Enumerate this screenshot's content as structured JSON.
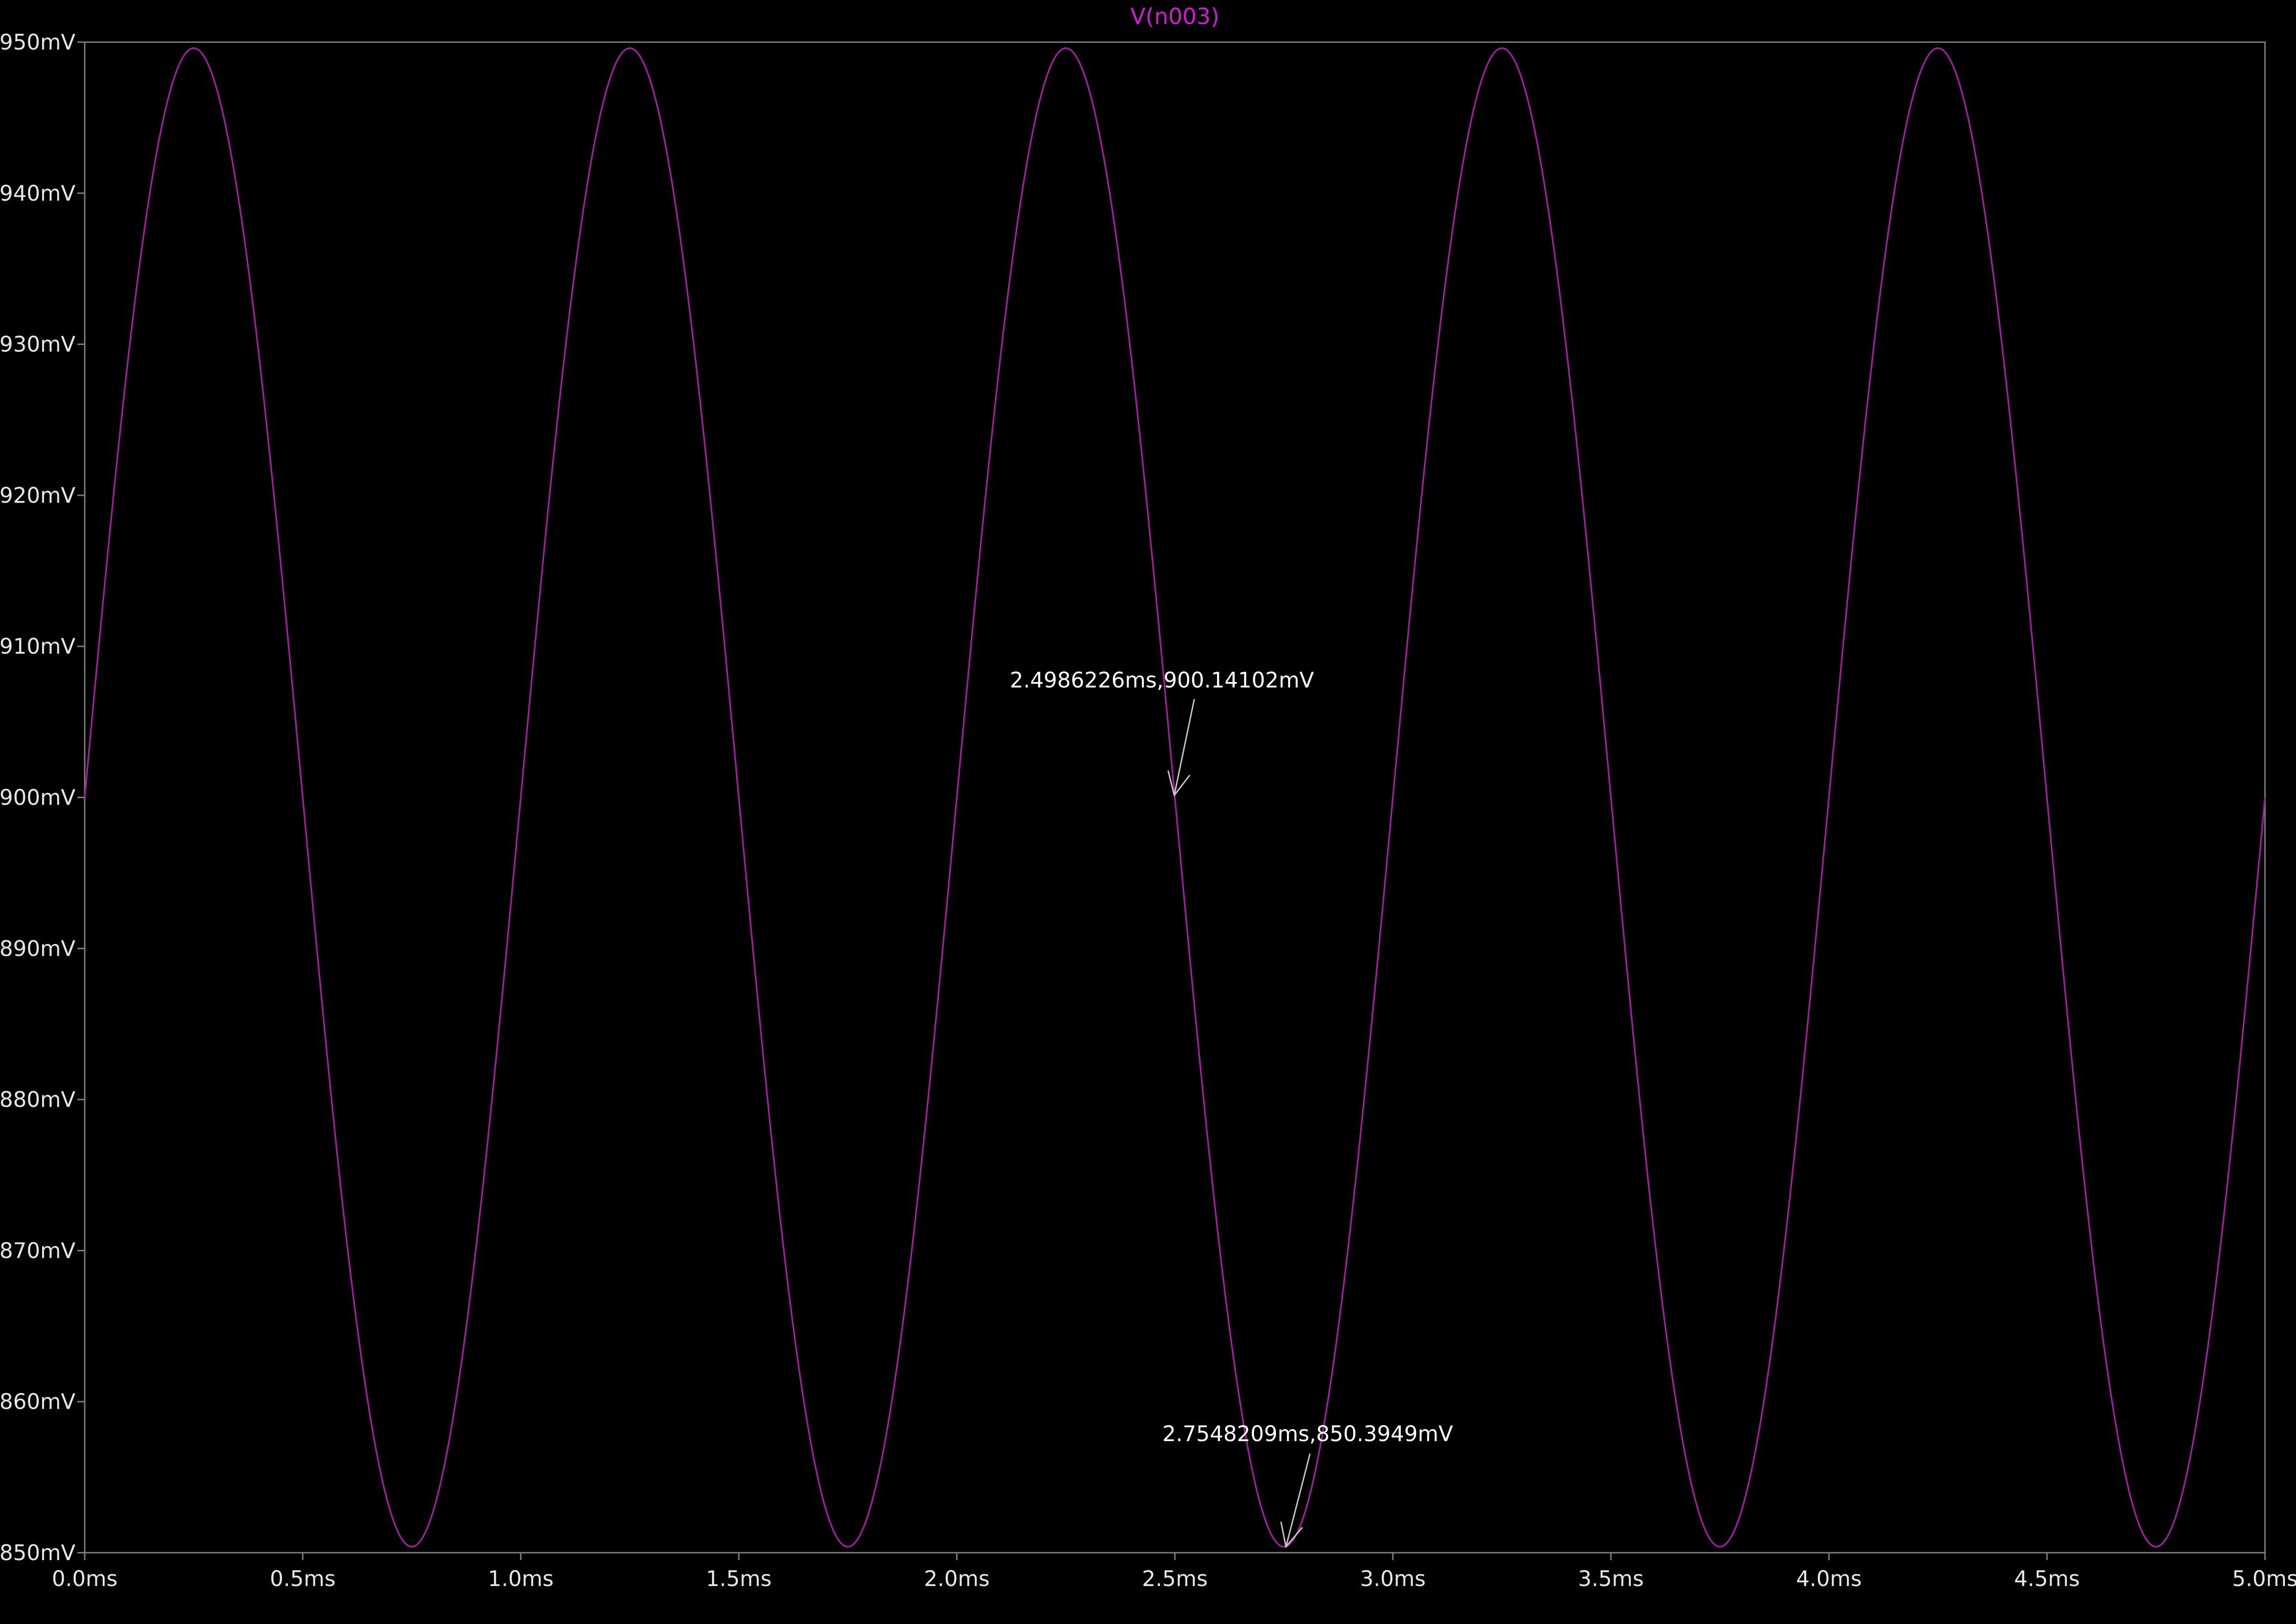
{
  "chart_data": {
    "type": "line",
    "title": "V(n003)",
    "title_color": "#d01cd0",
    "background": "#000000",
    "frame_color": "#808080",
    "tick_label_color": "#e6e6e6",
    "xlabel": "",
    "ylabel": "",
    "xlim": [
      0.0,
      5.0
    ],
    "ylim": [
      850,
      950
    ],
    "x_unit": "ms",
    "y_unit": "mV",
    "x_ticks": [
      0.0,
      0.5,
      1.0,
      1.5,
      2.0,
      2.5,
      3.0,
      3.5,
      4.0,
      4.5,
      5.0
    ],
    "x_tick_labels": [
      "0.0ms",
      "0.5ms",
      "1.0ms",
      "1.5ms",
      "2.0ms",
      "2.5ms",
      "3.0ms",
      "3.5ms",
      "4.0ms",
      "4.5ms",
      "5.0ms"
    ],
    "y_ticks": [
      850,
      860,
      870,
      880,
      890,
      900,
      910,
      920,
      930,
      940,
      950
    ],
    "y_tick_labels": [
      "850mV",
      "860mV",
      "870mV",
      "880mV",
      "890mV",
      "900mV",
      "910mV",
      "920mV",
      "930mV",
      "940mV",
      "950mV"
    ],
    "grid": false,
    "series": [
      {
        "name": "V(n003)",
        "color": "#a020a0",
        "waveform": "sine",
        "offset_mV": 900,
        "amplitude_mV": 49.6,
        "frequency_kHz": 1.0,
        "phase_deg": 0,
        "samples": 2001
      }
    ],
    "annotations": [
      {
        "label": "2.4986226ms,900.14102mV",
        "x": 2.4986226,
        "y": 900.14102
      },
      {
        "label": "2.7548209ms,850.3949mV",
        "x": 2.7548209,
        "y": 850.3949
      }
    ]
  }
}
